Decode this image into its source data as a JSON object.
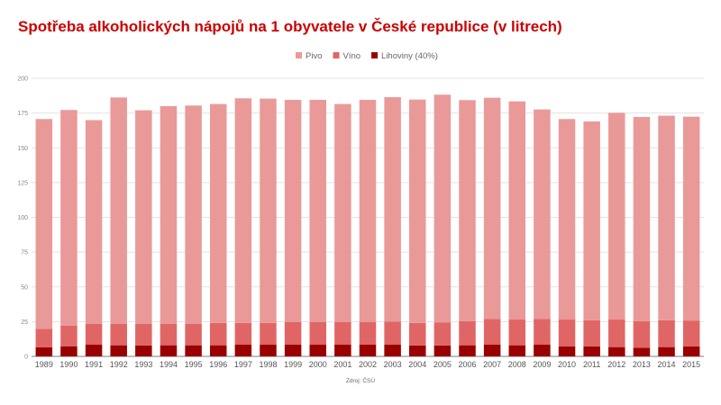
{
  "chart_data": {
    "type": "bar",
    "stacked": true,
    "title": "Spotřeba alkoholických nápojů na 1 obyvatele v České republice (v litrech)",
    "xlabel": "",
    "ylabel": "",
    "source": "Zdroj: ČSÚ",
    "ylim": [
      0,
      200
    ],
    "yticks": [
      0,
      25,
      50,
      75,
      100,
      125,
      150,
      175,
      200
    ],
    "grid": true,
    "legend_position": "top",
    "categories": [
      "1989",
      "1990",
      "1991",
      "1992",
      "1993",
      "1994",
      "1995",
      "1996",
      "1997",
      "1998",
      "1999",
      "2000",
      "2001",
      "2002",
      "2003",
      "2004",
      "2005",
      "2006",
      "2007",
      "2008",
      "2009",
      "2010",
      "2011",
      "2012",
      "2013",
      "2014",
      "2015"
    ],
    "series": [
      {
        "name": "Lihoviny (40%)",
        "color": "#990000",
        "values": [
          6.5,
          7.3,
          8.4,
          8.0,
          7.8,
          8.0,
          8.0,
          8.0,
          8.4,
          8.4,
          8.4,
          8.4,
          8.4,
          8.4,
          8.4,
          7.8,
          7.8,
          8.0,
          8.4,
          8.0,
          8.4,
          7.1,
          7.1,
          6.7,
          6.2,
          6.7,
          7.1
        ]
      },
      {
        "name": "Víno",
        "color": "#e06666",
        "values": [
          13.3,
          14.7,
          14.9,
          15.3,
          15.5,
          15.3,
          15.3,
          16.1,
          15.7,
          15.7,
          16.4,
          16.4,
          16.4,
          16.4,
          16.6,
          16.3,
          16.7,
          17.4,
          18.5,
          18.5,
          18.5,
          19.4,
          18.9,
          19.8,
          19.2,
          19.3,
          18.7
        ]
      },
      {
        "name": "Pivo",
        "color": "#ea9999",
        "values": [
          150.9,
          155.2,
          146.6,
          162.9,
          153.7,
          156.7,
          157.1,
          157.4,
          161.5,
          161.3,
          159.7,
          159.7,
          156.7,
          159.7,
          161.4,
          160.6,
          163.7,
          158.9,
          159.1,
          156.9,
          150.7,
          144.2,
          143.0,
          148.7,
          146.8,
          147.1,
          146.6
        ]
      }
    ],
    "legend_order": [
      "Pivo",
      "Víno",
      "Lihoviny (40%)"
    ]
  }
}
